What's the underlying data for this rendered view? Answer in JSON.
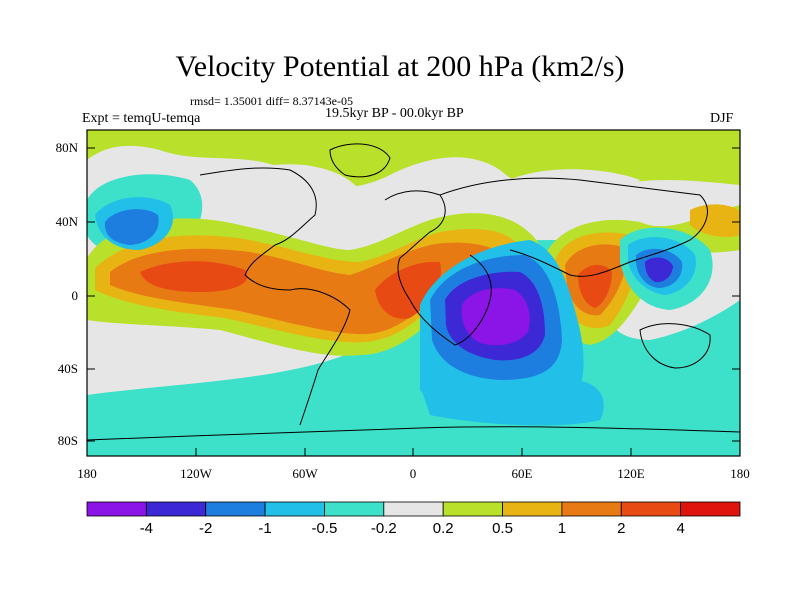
{
  "title": "Velocity Potential at 200 hPa (km2/s)",
  "stats": "rmsd= 1.35001 diff= 8.37143e-05",
  "experiment": "Expt = temqU-temqa",
  "period": "19.5kyr BP - 00.0kyr BP",
  "season": "DJF",
  "y_ticks": [
    "80N",
    "40N",
    "0",
    "40S",
    "80S"
  ],
  "x_ticks": [
    "180",
    "120W",
    "60W",
    "0",
    "60E",
    "120E",
    "180"
  ],
  "colorbar": {
    "labels": [
      "-4",
      "-2",
      "-1",
      "-0.5",
      "-0.2",
      "0.2",
      "0.5",
      "1",
      "2",
      "4"
    ],
    "colors": [
      "#8b14e6",
      "#3c28d4",
      "#1e7ee0",
      "#22c0e8",
      "#3de0c8",
      "#e6e6e6",
      "#b9e02a",
      "#e8b414",
      "#e87a14",
      "#e84a14",
      "#e0140e"
    ]
  },
  "colors": {
    "neutral": "#e6e6e6",
    "positive_weak": "#b9e02a",
    "positive_mid": "#e8b414",
    "positive_strong": "#e87a14",
    "positive_max": "#e84a14",
    "negative_weak": "#3de0c8",
    "negative_mid": "#22c0e8",
    "negative_strong": "#1e7ee0",
    "negative_deep": "#3c28d4",
    "negative_max": "#8b14e6"
  }
}
